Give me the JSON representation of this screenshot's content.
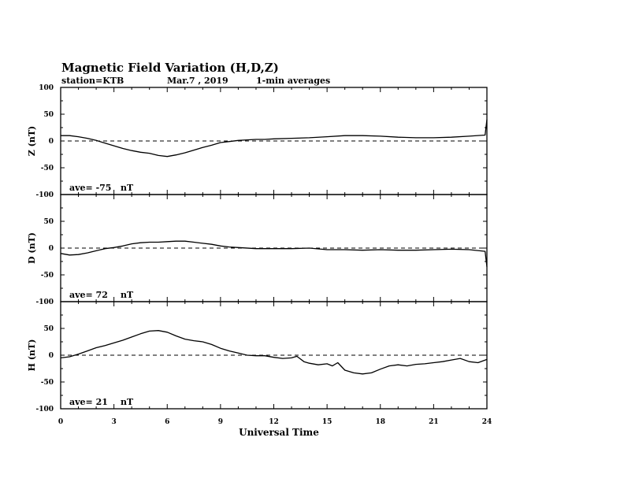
{
  "header": {
    "title": "Magnetic Field Variation (H,D,Z)",
    "station": "station=KTB",
    "date": "Mar.7 , 2019",
    "averages": "1-min averages"
  },
  "chart_data": {
    "type": "line",
    "xlabel": "Universal Time",
    "xlim": [
      0,
      24
    ],
    "xticks": [
      0,
      3,
      6,
      9,
      12,
      15,
      18,
      21,
      24
    ],
    "panels": [
      {
        "id": "Z",
        "ylabel": "Z (nT)",
        "ylim": [
          -100,
          100
        ],
        "yticks": [
          100,
          50,
          0,
          -50,
          -100
        ],
        "ave_label": "ave= -75",
        "unit": "nT",
        "series": [
          {
            "x": [
              0,
              0.5,
              1,
              1.5,
              2,
              2.5,
              3,
              3.5,
              4,
              4.5,
              5,
              5.5,
              6,
              6.5,
              7,
              7.5,
              8,
              8.5,
              9,
              9.5,
              10,
              10.5,
              11,
              11.5,
              12,
              13,
              14,
              15,
              16,
              17,
              18,
              19,
              20,
              21,
              22,
              23,
              23.9,
              24
            ],
            "y": [
              10,
              10,
              8,
              5,
              1,
              -4,
              -9,
              -14,
              -18,
              -21,
              -23,
              -27,
              -29,
              -26,
              -22,
              -17,
              -12,
              -8,
              -3,
              -1,
              1,
              2,
              3,
              3,
              4,
              5,
              6,
              8,
              10,
              10,
              9,
              7,
              6,
              6,
              7,
              9,
              11,
              40
            ]
          }
        ]
      },
      {
        "id": "D",
        "ylabel": "D (nT)",
        "ylim": [
          -100,
          100
        ],
        "yticks": [
          100,
          50,
          0,
          -50,
          -100
        ],
        "ave_label": "ave= 72",
        "unit": "nT",
        "series": [
          {
            "x": [
              0,
              0.5,
              1,
              1.5,
              2,
              2.5,
              3,
              3.5,
              4,
              4.5,
              5,
              5.5,
              6,
              6.5,
              7,
              7.5,
              8,
              8.5,
              9,
              9.5,
              10,
              11,
              12,
              13,
              14,
              15,
              16,
              17,
              18,
              19,
              20,
              21,
              22,
              23,
              23.9,
              24
            ],
            "y": [
              -10,
              -13,
              -12,
              -9,
              -5,
              -1,
              1,
              4,
              8,
              10,
              11,
              11,
              12,
              13,
              13,
              11,
              9,
              7,
              4,
              2,
              1,
              -1,
              -1,
              -1,
              0,
              -3,
              -3,
              -4,
              -3,
              -4,
              -4,
              -3,
              -2,
              -3,
              -6,
              -35
            ]
          }
        ]
      },
      {
        "id": "H",
        "ylabel": "H (nT)",
        "ylim": [
          -100,
          100
        ],
        "yticks": [
          100,
          50,
          0,
          -50,
          -100
        ],
        "ave_label": "ave= 21",
        "unit": "nT",
        "series": [
          {
            "x": [
              0,
              0.5,
              1,
              1.5,
              2,
              2.5,
              3,
              3.5,
              4,
              4.5,
              5,
              5.5,
              6,
              6.5,
              7,
              7.5,
              8,
              8.5,
              9,
              9.5,
              10,
              10.5,
              11,
              11.5,
              12,
              12.5,
              13,
              13.3,
              13.7,
              14,
              14.5,
              15,
              15.3,
              15.6,
              16,
              16.5,
              17,
              17.5,
              18,
              18.5,
              19,
              19.5,
              20,
              20.5,
              21,
              21.5,
              22,
              22.5,
              23,
              23.5,
              24
            ],
            "y": [
              -5,
              -3,
              2,
              8,
              14,
              18,
              23,
              28,
              34,
              40,
              45,
              46,
              43,
              36,
              30,
              27,
              25,
              20,
              13,
              8,
              4,
              0,
              -1,
              -1,
              -4,
              -6,
              -5,
              -2,
              -12,
              -15,
              -18,
              -16,
              -20,
              -14,
              -28,
              -33,
              -35,
              -33,
              -26,
              -20,
              -18,
              -20,
              -17,
              -16,
              -14,
              -12,
              -9,
              -6,
              -12,
              -14,
              -8
            ]
          }
        ]
      }
    ]
  }
}
